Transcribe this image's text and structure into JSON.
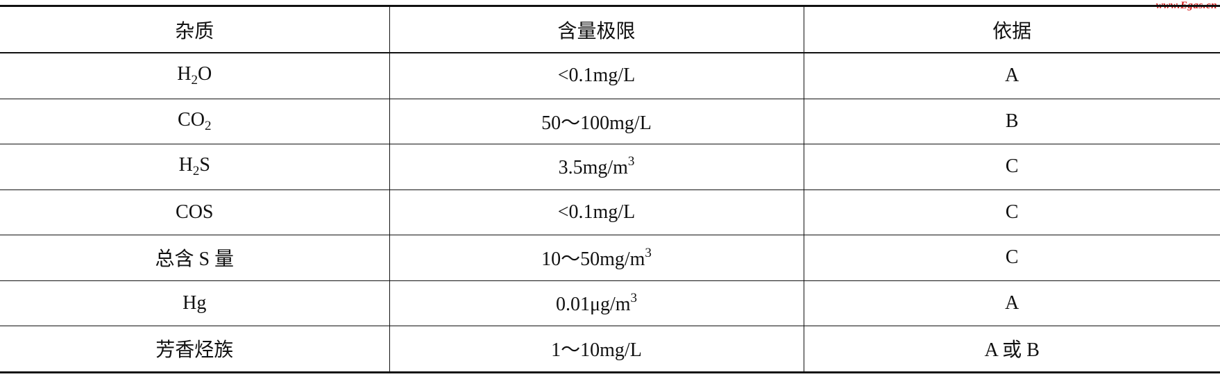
{
  "watermark": "www.Egas.cn",
  "headers": [
    "杂质",
    "含量极限",
    "依据"
  ],
  "rows": [
    [
      [
        {
          "t": "H"
        },
        {
          "sub": "2"
        },
        {
          "t": "O"
        }
      ],
      [
        {
          "t": "<0.1mg/L"
        }
      ],
      [
        {
          "t": "A"
        }
      ]
    ],
    [
      [
        {
          "t": "CO"
        },
        {
          "sub": "2"
        }
      ],
      [
        {
          "t": "50～100mg/L"
        }
      ],
      [
        {
          "t": "B"
        }
      ]
    ],
    [
      [
        {
          "t": "H"
        },
        {
          "sub": "2"
        },
        {
          "t": "S"
        }
      ],
      [
        {
          "t": "3.5mg/m"
        },
        {
          "sup": "3"
        }
      ],
      [
        {
          "t": "C"
        }
      ]
    ],
    [
      [
        {
          "t": "COS"
        }
      ],
      [
        {
          "t": "<0.1mg/L"
        }
      ],
      [
        {
          "t": "C"
        }
      ]
    ],
    [
      [
        {
          "t": "总含 S 量"
        }
      ],
      [
        {
          "t": "10～50mg/m"
        },
        {
          "sup": "3"
        }
      ],
      [
        {
          "t": "C"
        }
      ]
    ],
    [
      [
        {
          "t": "Hg"
        }
      ],
      [
        {
          "t": "0.01μg/m"
        },
        {
          "sup": "3"
        }
      ],
      [
        {
          "t": "A"
        }
      ]
    ],
    [
      [
        {
          "t": "芳香烃族"
        }
      ],
      [
        {
          "t": "1～10mg/L"
        }
      ],
      [
        {
          "t": "A 或 B"
        }
      ]
    ]
  ]
}
